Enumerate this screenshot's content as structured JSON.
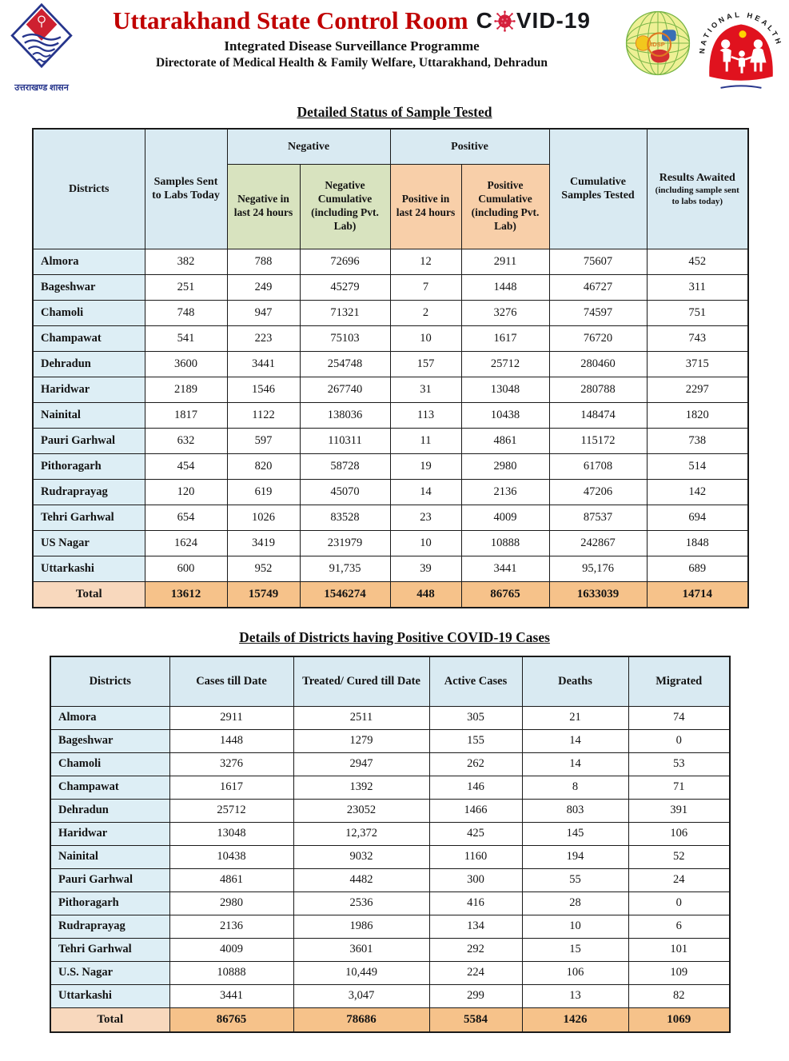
{
  "header": {
    "title": "Uttarakhand State Control Room",
    "covid_prefix": "C",
    "covid_suffix": "VID-19",
    "subtitle1": "Integrated Disease Surveillance Programme",
    "subtitle2": "Directorate of Medical Health & Family Welfare, Uttarakhand, Dehradun",
    "left_logo_caption": "उत्तराखण्ड शासन",
    "idsp_label": "IDSP",
    "nhm_label": "NATIONAL HEALTH MISSION",
    "accent_red": "#c00000",
    "virus_red": "#d41f3c"
  },
  "table1": {
    "title": "Detailed Status of Sample Tested",
    "header": {
      "districts": "Districts",
      "samples_sent": "Samples Sent to Labs Today",
      "negative_group": "Negative",
      "positive_group": "Positive",
      "negative_24h": "Negative in last 24 hours",
      "negative_cumulative": "Negative Cumulative (including Pvt. Lab)",
      "positive_24h": "Positive in last 24 hours",
      "positive_cumulative": "Positive Cumulative (including Pvt. Lab)",
      "cumulative_tested": "Cumulative Samples Tested",
      "results_awaited": "Results Awaited",
      "results_awaited_note": "(including sample sent to labs today)"
    },
    "rows": [
      {
        "district": "Almora",
        "values": [
          "382",
          "788",
          "72696",
          "12",
          "2911",
          "75607",
          "452"
        ]
      },
      {
        "district": "Bageshwar",
        "values": [
          "251",
          "249",
          "45279",
          "7",
          "1448",
          "46727",
          "311"
        ]
      },
      {
        "district": "Chamoli",
        "values": [
          "748",
          "947",
          "71321",
          "2",
          "3276",
          "74597",
          "751"
        ]
      },
      {
        "district": "Champawat",
        "values": [
          "541",
          "223",
          "75103",
          "10",
          "1617",
          "76720",
          "743"
        ]
      },
      {
        "district": "Dehradun",
        "values": [
          "3600",
          "3441",
          "254748",
          "157",
          "25712",
          "280460",
          "3715"
        ]
      },
      {
        "district": "Haridwar",
        "values": [
          "2189",
          "1546",
          "267740",
          "31",
          "13048",
          "280788",
          "2297"
        ]
      },
      {
        "district": "Nainital",
        "values": [
          "1817",
          "1122",
          "138036",
          "113",
          "10438",
          "148474",
          "1820"
        ]
      },
      {
        "district": "Pauri Garhwal",
        "values": [
          "632",
          "597",
          "110311",
          "11",
          "4861",
          "115172",
          "738"
        ]
      },
      {
        "district": "Pithoragarh",
        "values": [
          "454",
          "820",
          "58728",
          "19",
          "2980",
          "61708",
          "514"
        ]
      },
      {
        "district": "Rudraprayag",
        "values": [
          "120",
          "619",
          "45070",
          "14",
          "2136",
          "47206",
          "142"
        ]
      },
      {
        "district": "Tehri Garhwal",
        "values": [
          "654",
          "1026",
          "83528",
          "23",
          "4009",
          "87537",
          "694"
        ]
      },
      {
        "district": "US Nagar",
        "values": [
          "1624",
          "3419",
          "231979",
          "10",
          "10888",
          "242867",
          "1848"
        ]
      },
      {
        "district": "Uttarkashi",
        "values": [
          "600",
          "952",
          "91,735",
          "39",
          "3441",
          "95,176",
          "689"
        ]
      },
      {
        "district": "Total",
        "is_total": true,
        "values": [
          "13612",
          "15749",
          "1546274",
          "448",
          "86765",
          "1633039",
          "14714"
        ]
      }
    ]
  },
  "table2": {
    "title": "Details of Districts having Positive COVID-19 Cases",
    "header": {
      "districts": "Districts",
      "cases": "Cases till Date",
      "treated": "Treated/ Cured till Date",
      "active": "Active Cases",
      "deaths": "Deaths",
      "migrated": "Migrated"
    },
    "rows": [
      {
        "district": "Almora",
        "values": [
          "2911",
          "2511",
          "305",
          "21",
          "74"
        ]
      },
      {
        "district": "Bageshwar",
        "values": [
          "1448",
          "1279",
          "155",
          "14",
          "0"
        ]
      },
      {
        "district": "Chamoli",
        "values": [
          "3276",
          "2947",
          "262",
          "14",
          "53"
        ]
      },
      {
        "district": "Champawat",
        "values": [
          "1617",
          "1392",
          "146",
          "8",
          "71"
        ]
      },
      {
        "district": "Dehradun",
        "values": [
          "25712",
          "23052",
          "1466",
          "803",
          "391"
        ]
      },
      {
        "district": "Haridwar",
        "values": [
          "13048",
          "12,372",
          "425",
          "145",
          "106"
        ]
      },
      {
        "district": "Nainital",
        "values": [
          "10438",
          "9032",
          "1160",
          "194",
          "52"
        ]
      },
      {
        "district": "Pauri Garhwal",
        "values": [
          "4861",
          "4482",
          "300",
          "55",
          "24"
        ]
      },
      {
        "district": "Pithoragarh",
        "values": [
          "2980",
          "2536",
          "416",
          "28",
          "0"
        ]
      },
      {
        "district": "Rudraprayag",
        "values": [
          "2136",
          "1986",
          "134",
          "10",
          "6"
        ]
      },
      {
        "district": "Tehri Garhwal",
        "values": [
          "4009",
          "3601",
          "292",
          "15",
          "101"
        ]
      },
      {
        "district": "U.S. Nagar",
        "values": [
          "10888",
          "10,449",
          "224",
          "106",
          "109"
        ]
      },
      {
        "district": "Uttarkashi",
        "values": [
          "3441",
          "3,047",
          "299",
          "13",
          "82"
        ]
      },
      {
        "district": "Total",
        "is_total": true,
        "values": [
          "86765",
          "78686",
          "5584",
          "1426",
          "1069"
        ]
      }
    ]
  }
}
